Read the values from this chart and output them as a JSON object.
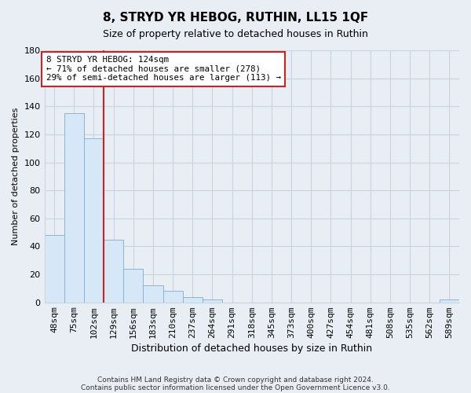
{
  "title": "8, STRYD YR HEBOG, RUTHIN, LL15 1QF",
  "subtitle": "Size of property relative to detached houses in Ruthin",
  "xlabel": "Distribution of detached houses by size in Ruthin",
  "ylabel": "Number of detached properties",
  "bar_color": "#d6e8f7",
  "bar_edge_color": "#8ab4d4",
  "categories": [
    "48sqm",
    "75sqm",
    "102sqm",
    "129sqm",
    "156sqm",
    "183sqm",
    "210sqm",
    "237sqm",
    "264sqm",
    "291sqm",
    "318sqm",
    "345sqm",
    "373sqm",
    "400sqm",
    "427sqm",
    "454sqm",
    "481sqm",
    "508sqm",
    "535sqm",
    "562sqm",
    "589sqm"
  ],
  "values": [
    48,
    135,
    117,
    45,
    24,
    12,
    8,
    4,
    2,
    0,
    0,
    0,
    0,
    0,
    0,
    0,
    0,
    0,
    0,
    0,
    2
  ],
  "ylim": [
    0,
    180
  ],
  "yticks": [
    0,
    20,
    40,
    60,
    80,
    100,
    120,
    140,
    160,
    180
  ],
  "annotation_title": "8 STRYD YR HEBOG: 124sqm",
  "annotation_line1": "← 71% of detached houses are smaller (278)",
  "annotation_line2": "29% of semi-detached houses are larger (113) →",
  "red_line_color": "#cc2222",
  "footer_line1": "Contains HM Land Registry data © Crown copyright and database right 2024.",
  "footer_line2": "Contains public sector information licensed under the Open Government Licence v3.0.",
  "background_color": "#e8eef4",
  "plot_background": "#e8eef4",
  "grid_color": "#c8d4e0"
}
